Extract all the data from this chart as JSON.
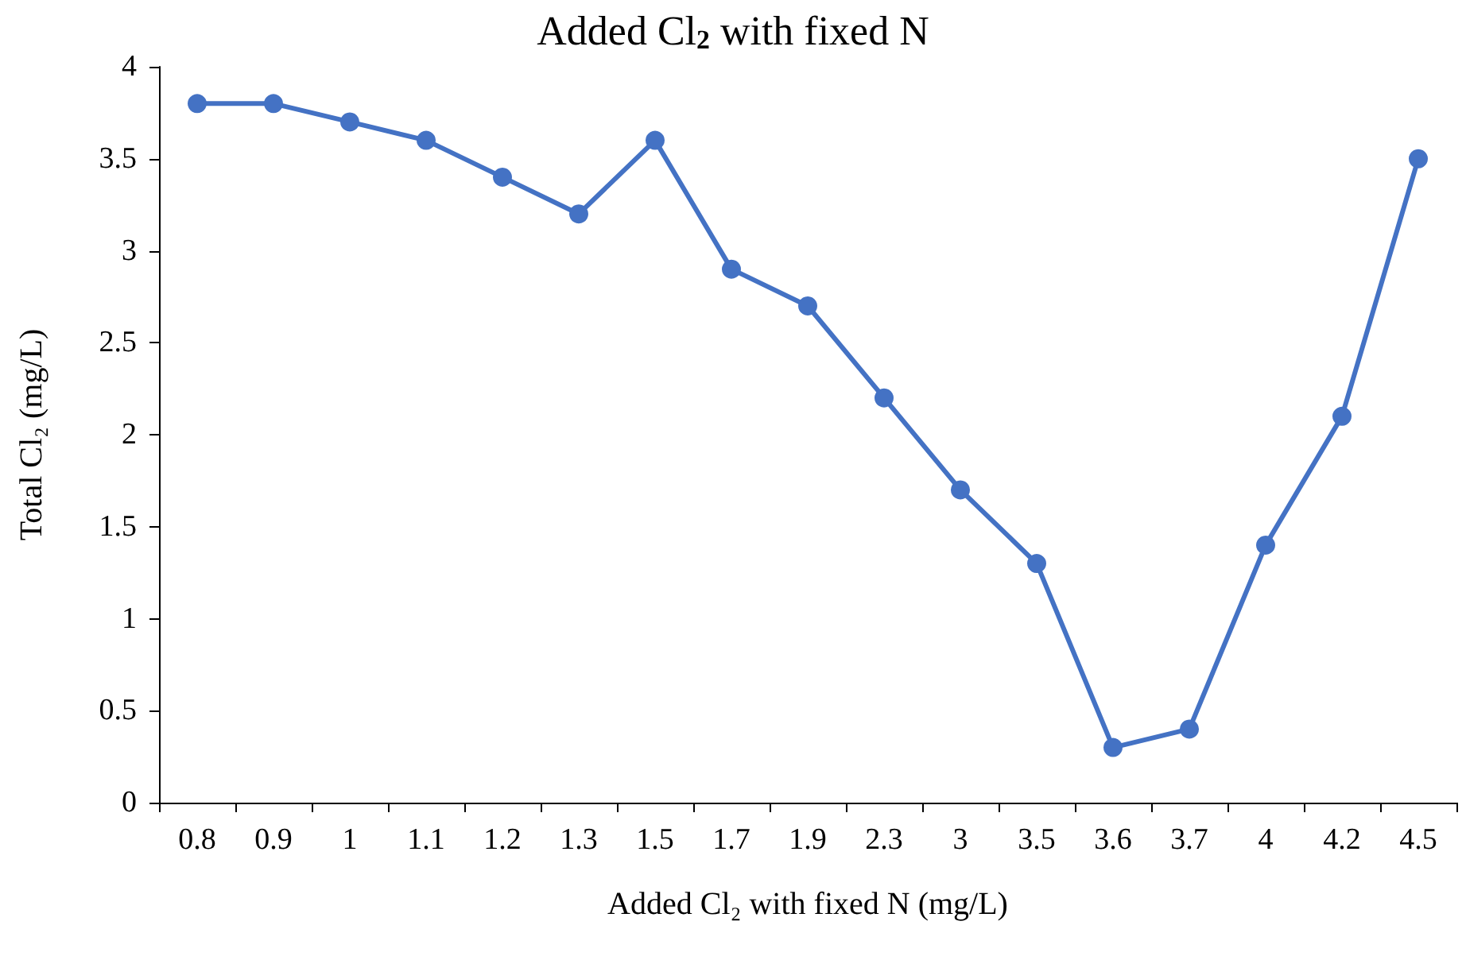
{
  "chart_data": {
    "type": "line",
    "title": "Added Cl$_{2}$ with fixed N",
    "xlabel": "Added Cl₂ with fixed N (mg/L)",
    "ylabel": "Total Cl₂ (mg/L)",
    "categories": [
      "0.8",
      "0.9",
      "1",
      "1.1",
      "1.2",
      "1.3",
      "1.5",
      "1.7",
      "1.9",
      "2.3",
      "3",
      "3.5",
      "3.6",
      "3.7",
      "4",
      "4.2",
      "4.5"
    ],
    "series": [
      {
        "color": "#4472c4",
        "values": [
          3.8,
          3.8,
          3.7,
          3.6,
          3.4,
          3.2,
          3.6,
          2.9,
          2.7,
          2.2,
          1.7,
          1.3,
          0.3,
          0.4,
          1.4,
          2.1,
          3.5
        ]
      }
    ],
    "ylim": [
      0,
      4
    ],
    "yticks": [
      0,
      0.5,
      1,
      1.5,
      2,
      2.5,
      3,
      3.5,
      4
    ],
    "grid": false,
    "marker": "circle",
    "line_style": "solid"
  }
}
